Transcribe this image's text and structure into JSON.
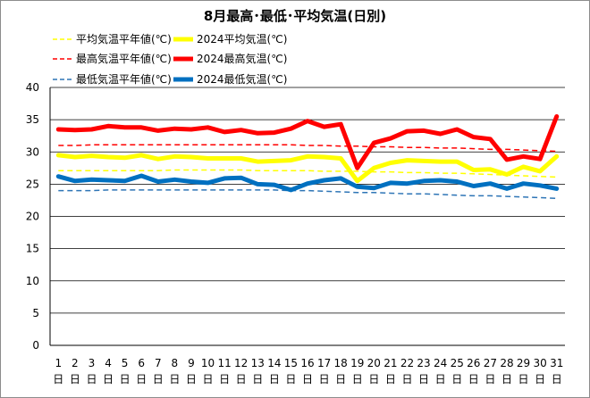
{
  "chart_data": {
    "type": "line",
    "title": "8月最高･最低･平均気温(日別)",
    "xlabel": "",
    "ylabel": "",
    "ylim": [
      0,
      40
    ],
    "yticks": [
      0,
      5,
      10,
      15,
      20,
      25,
      30,
      35,
      40
    ],
    "day_suffix": "日",
    "categories": [
      "1",
      "2",
      "3",
      "4",
      "5",
      "6",
      "7",
      "8",
      "9",
      "10",
      "11",
      "12",
      "13",
      "14",
      "15",
      "16",
      "17",
      "18",
      "19",
      "20",
      "21",
      "22",
      "23",
      "24",
      "25",
      "26",
      "27",
      "28",
      "29",
      "30",
      "31"
    ],
    "grid": true,
    "legend": "top-left",
    "series": [
      {
        "name": "平均気温平年値(℃)",
        "color": "#ffff00",
        "style": "dashed",
        "values": [
          27.1,
          27.1,
          27.1,
          27.1,
          27.1,
          27.1,
          27.1,
          27.2,
          27.2,
          27.2,
          27.2,
          27.2,
          27.1,
          27.1,
          27.1,
          27.1,
          27.0,
          27.0,
          27.0,
          26.9,
          26.9,
          26.8,
          26.8,
          26.7,
          26.7,
          26.6,
          26.5,
          26.4,
          26.3,
          26.2,
          26.1
        ]
      },
      {
        "name": "2024平均気温(℃)",
        "color": "#ffff00",
        "style": "solid",
        "values": [
          29.5,
          29.2,
          29.4,
          29.2,
          29.1,
          29.5,
          28.9,
          29.3,
          29.2,
          29.0,
          29.0,
          29.0,
          28.5,
          28.6,
          28.7,
          29.3,
          29.2,
          29.0,
          25.5,
          27.5,
          28.3,
          28.7,
          28.6,
          28.5,
          28.5,
          27.2,
          27.3,
          26.5,
          27.7,
          27.0,
          29.3
        ]
      },
      {
        "name": "最高気温平年値(℃)",
        "color": "#ff0000",
        "style": "dashed",
        "values": [
          31.0,
          31.0,
          31.1,
          31.1,
          31.1,
          31.1,
          31.1,
          31.1,
          31.1,
          31.1,
          31.1,
          31.1,
          31.1,
          31.1,
          31.1,
          31.0,
          31.0,
          30.9,
          30.9,
          30.8,
          30.8,
          30.7,
          30.7,
          30.6,
          30.6,
          30.5,
          30.4,
          30.4,
          30.3,
          30.2,
          30.1
        ]
      },
      {
        "name": "2024最高気温(℃)",
        "color": "#ff0000",
        "style": "solid",
        "values": [
          33.5,
          33.4,
          33.5,
          34.0,
          33.8,
          33.8,
          33.3,
          33.6,
          33.5,
          33.8,
          33.1,
          33.4,
          32.9,
          33.0,
          33.6,
          34.8,
          33.9,
          34.3,
          27.5,
          31.4,
          32.1,
          33.2,
          33.3,
          32.8,
          33.5,
          32.3,
          32.0,
          28.8,
          29.3,
          28.9,
          35.5
        ]
      },
      {
        "name": "最低気温平年値(℃)",
        "color": "#2e75b6",
        "style": "dashed",
        "values": [
          24.0,
          24.0,
          24.0,
          24.1,
          24.1,
          24.1,
          24.1,
          24.1,
          24.1,
          24.1,
          24.1,
          24.1,
          24.1,
          24.1,
          24.0,
          24.0,
          23.9,
          23.8,
          23.7,
          23.7,
          23.6,
          23.5,
          23.5,
          23.4,
          23.3,
          23.2,
          23.2,
          23.1,
          23.0,
          22.9,
          22.8
        ]
      },
      {
        "name": "2024最低気温(℃)",
        "color": "#0070c0",
        "style": "solid",
        "values": [
          26.2,
          25.5,
          25.7,
          25.6,
          25.5,
          26.3,
          25.4,
          25.7,
          25.4,
          25.2,
          25.9,
          26.0,
          25.0,
          24.9,
          24.1,
          25.1,
          25.6,
          25.9,
          24.6,
          24.4,
          25.2,
          25.1,
          25.5,
          25.6,
          25.4,
          24.7,
          25.1,
          24.3,
          25.1,
          24.8,
          24.3
        ]
      }
    ]
  }
}
